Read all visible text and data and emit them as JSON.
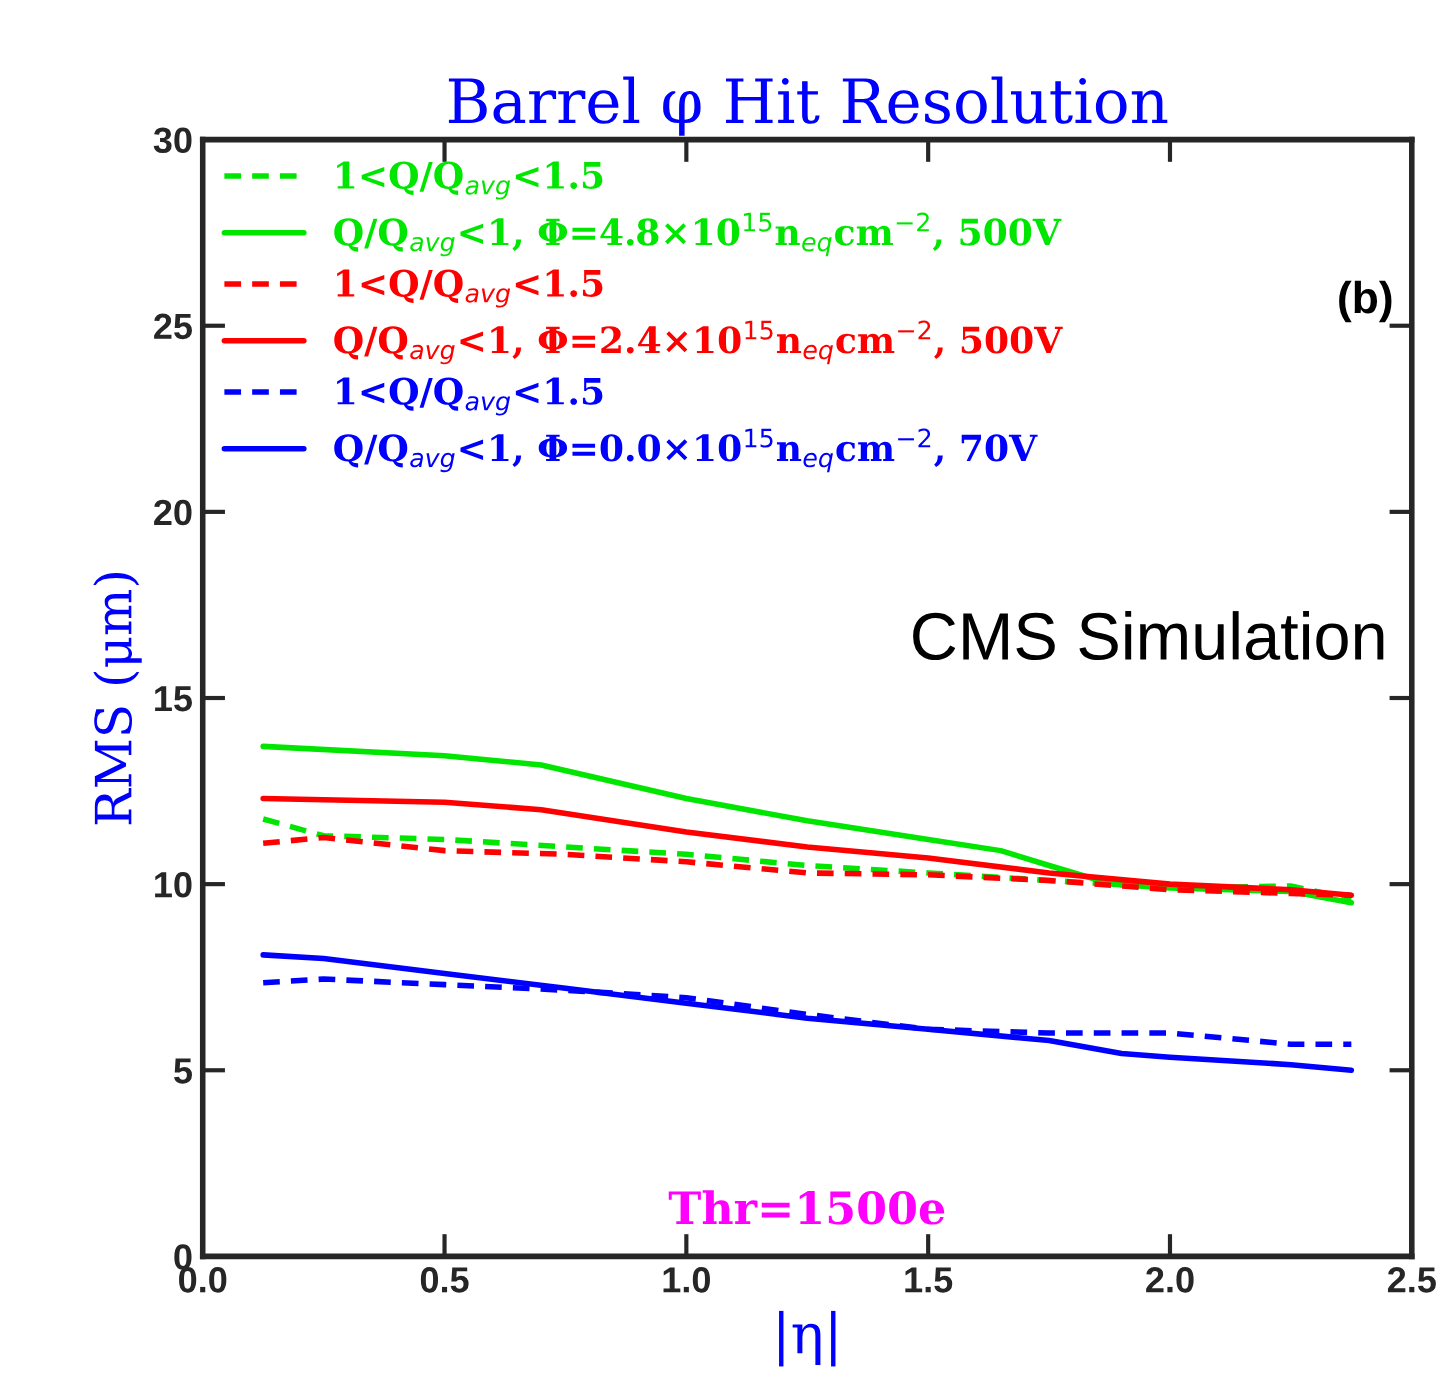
{
  "chart_data": {
    "type": "line",
    "title": "Barrel φ Hit Resolution",
    "xlabel": "|η|",
    "ylabel": "RMS (μm)",
    "xlim": [
      0,
      2.5
    ],
    "ylim": [
      0,
      30
    ],
    "xticks": [
      {
        "value": 0,
        "label": "0.0"
      },
      0.5,
      {
        "value": 1,
        "label": "1.0"
      },
      1.5,
      {
        "value": 2,
        "label": "2.0"
      },
      2.5
    ],
    "yticks": [
      0,
      5,
      10,
      15,
      20,
      25,
      30
    ],
    "grid": false,
    "legend": "top left",
    "marker": "none",
    "annotations": [
      "(b)",
      "CMS Simulation",
      "Thr=1500e"
    ],
    "series": [
      {
        "name": "1<Q/Q$_{avg}$<1.5",
        "color": "#00e600",
        "line_style": "dashed",
        "x": [
          0.125,
          0.25,
          0.5,
          0.75,
          1.0,
          1.25,
          1.5,
          1.75,
          2.0,
          2.25,
          2.375
        ],
        "values": [
          11.75,
          11.3,
          11.2,
          11.0,
          10.8,
          10.5,
          10.3,
          10.1,
          9.9,
          9.95,
          9.6
        ]
      },
      {
        "name": "Q/Q$_{avg}$<1, Φ=4.8×10$^{15}$n$_{eq}$cm$^{−2}$, 500V",
        "color": "#00e600",
        "line_style": "solid",
        "x": [
          0.125,
          0.5,
          0.7,
          1.0,
          1.25,
          1.5,
          1.65,
          1.75,
          1.88,
          2.0,
          2.25,
          2.375
        ],
        "values": [
          13.7,
          13.45,
          13.2,
          12.3,
          11.7,
          11.2,
          10.9,
          10.5,
          10.0,
          9.9,
          9.8,
          9.5
        ]
      },
      {
        "name": "1<Q/Q$_{avg}$<1.5",
        "color": "#ff0000",
        "line_style": "dashed",
        "x": [
          0.125,
          0.25,
          0.5,
          0.75,
          1.0,
          1.25,
          1.5,
          1.75,
          2.0,
          2.25,
          2.375
        ],
        "values": [
          11.1,
          11.25,
          10.9,
          10.8,
          10.6,
          10.3,
          10.25,
          10.1,
          9.85,
          9.75,
          9.7
        ]
      },
      {
        "name": "Q/Q$_{avg}$<1, Φ=2.4×10$^{15}$n$_{eq}$cm$^{−2}$, 500V",
        "color": "#ff0000",
        "line_style": "solid",
        "x": [
          0.125,
          0.5,
          0.7,
          1.0,
          1.25,
          1.5,
          1.75,
          2.0,
          2.25,
          2.375
        ],
        "values": [
          12.3,
          12.2,
          12.0,
          11.4,
          11.0,
          10.7,
          10.3,
          10.0,
          9.85,
          9.7
        ]
      },
      {
        "name": "1<Q/Q$_{avg}$<1.5",
        "color": "#0000ff",
        "line_style": "dashed",
        "x": [
          0.125,
          0.25,
          0.5,
          0.75,
          1.0,
          1.25,
          1.5,
          1.75,
          2.0,
          2.25,
          2.375
        ],
        "values": [
          7.35,
          7.45,
          7.3,
          7.15,
          6.95,
          6.5,
          6.1,
          6.0,
          6.0,
          5.7,
          5.7
        ]
      },
      {
        "name": "Q/Q$_{avg}$<1, Φ=0.0×10$^{15}$n$_{eq}$cm$^{−2}$, 70V",
        "color": "#0000ff",
        "line_style": "solid",
        "x": [
          0.125,
          0.25,
          0.5,
          0.75,
          1.0,
          1.25,
          1.5,
          1.75,
          1.9,
          2.0,
          2.25,
          2.375
        ],
        "values": [
          8.1,
          8.0,
          7.6,
          7.2,
          6.8,
          6.4,
          6.1,
          5.8,
          5.45,
          5.35,
          5.15,
          5.0
        ]
      }
    ]
  }
}
